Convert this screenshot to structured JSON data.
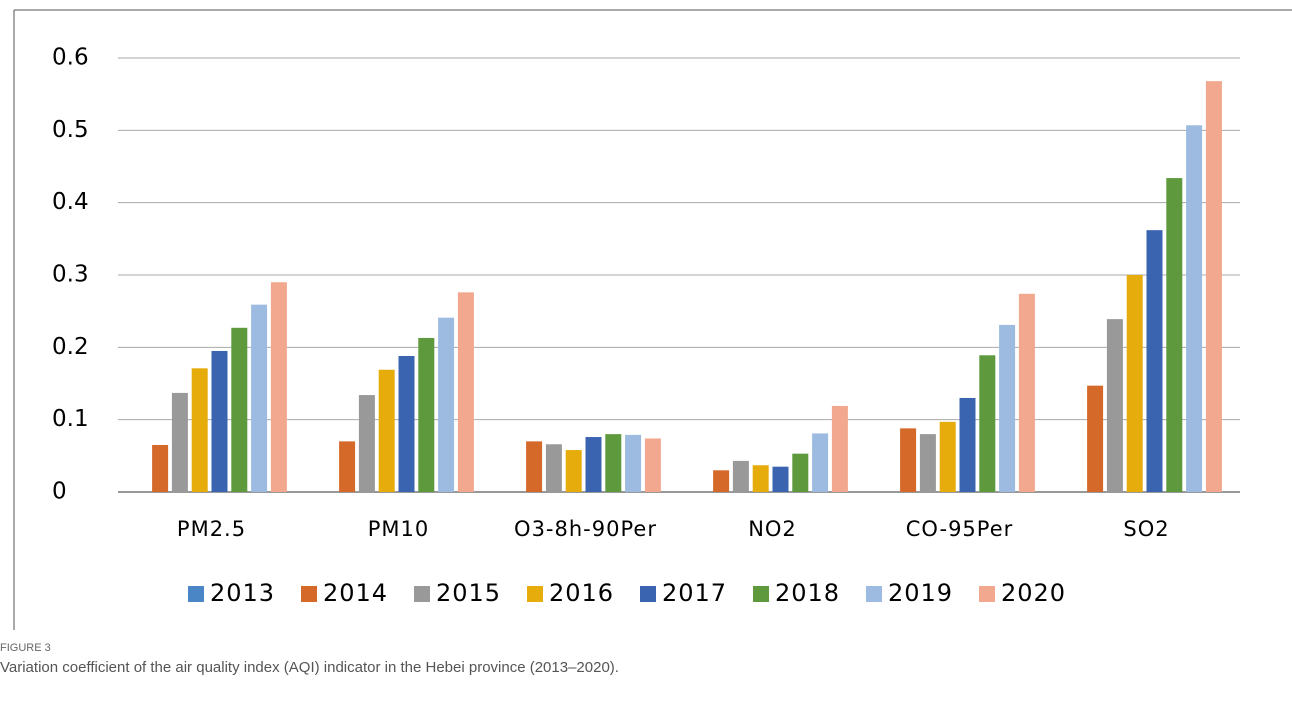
{
  "chart_data": {
    "type": "bar",
    "figure_label": "FIGURE 3",
    "caption": "Variation coefficient of the air quality index (AQI) indicator in the Hebei province (2013–2020).",
    "categories": [
      "PM2.5",
      "PM10",
      "O3-8h-90Per",
      "NO2",
      "CO-95Per",
      "SO2"
    ],
    "series": [
      {
        "name": "2013",
        "color": "#4a86c5",
        "values": [
          0,
          0,
          0,
          0,
          0,
          0
        ]
      },
      {
        "name": "2014",
        "color": "#d5692a",
        "values": [
          0.065,
          0.07,
          0.07,
          0.03,
          0.088,
          0.147
        ]
      },
      {
        "name": "2015",
        "color": "#999999",
        "values": [
          0.137,
          0.134,
          0.066,
          0.043,
          0.08,
          0.239
        ]
      },
      {
        "name": "2016",
        "color": "#e6ac0c",
        "values": [
          0.171,
          0.169,
          0.058,
          0.037,
          0.097,
          0.3
        ]
      },
      {
        "name": "2017",
        "color": "#3a64b0",
        "values": [
          0.195,
          0.188,
          0.076,
          0.035,
          0.13,
          0.362
        ]
      },
      {
        "name": "2018",
        "color": "#5e9a3d",
        "values": [
          0.227,
          0.213,
          0.08,
          0.053,
          0.189,
          0.434
        ]
      },
      {
        "name": "2019",
        "color": "#9dbbe0",
        "values": [
          0.259,
          0.241,
          0.079,
          0.081,
          0.231,
          0.507
        ]
      },
      {
        "name": "2020",
        "color": "#f2a88e",
        "values": [
          0.29,
          0.276,
          0.074,
          0.119,
          0.274,
          0.568
        ]
      }
    ],
    "ylim": [
      0,
      0.6
    ],
    "yticks": [
      0,
      0.1,
      0.2,
      0.3,
      0.4,
      0.5,
      0.6
    ],
    "grid": true,
    "legend": "bottom"
  }
}
